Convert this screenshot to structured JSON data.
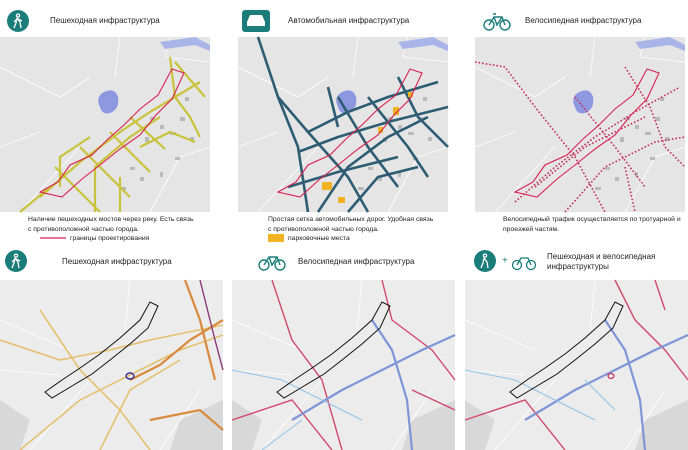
{
  "top_panels": [
    {
      "title": "Пешеходная инфраструктура",
      "caption": [
        "Наличие пешеходных мостов через реку. Есть связь",
        "с противоположной частью города."
      ],
      "legend": "границы проектирования"
    },
    {
      "title": "Автомобильная инфраструктура",
      "caption": [
        "Простая сетка автомобильных дорог. Удобная связь",
        "с противоположной частью города."
      ],
      "legend": "парковочные места"
    },
    {
      "title": "Велосипедная инфраструктура",
      "caption": [
        "Велосипедный трафик осуществляется по тротуарной и",
        "проезжей частям."
      ]
    }
  ],
  "bottom_panels": [
    {
      "title": "Пешеходная инфраструктура"
    },
    {
      "title": "Велосипедная инфраструктура"
    },
    {
      "title": [
        "Пешеходная и велосипедная",
        "инфраструктуры"
      ]
    }
  ]
}
